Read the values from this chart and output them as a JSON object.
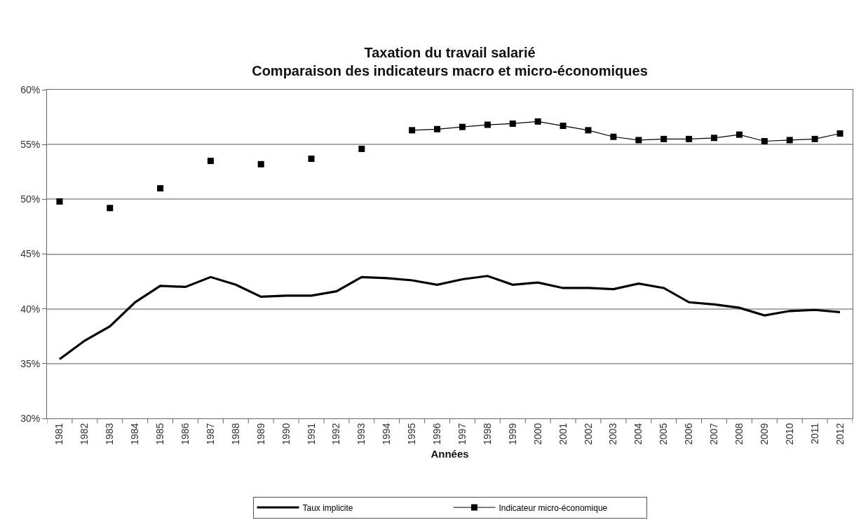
{
  "chart_data": {
    "type": "line",
    "title": "Taxation du travail salarié",
    "subtitle": "Comparaison des indicateurs macro et micro-économiques",
    "xlabel": "Années",
    "categories": [
      "1981",
      "1982",
      "1983",
      "1984",
      "1985",
      "1986",
      "1987",
      "1988",
      "1989",
      "1990",
      "1991",
      "1992",
      "1993",
      "1994",
      "1995",
      "1996",
      "1997",
      "1998",
      "1999",
      "2000",
      "2001",
      "2002",
      "2003",
      "2004",
      "2005",
      "2006",
      "2007",
      "2008",
      "2009",
      "2010",
      "2011",
      "2012"
    ],
    "series": [
      {
        "name": "Taux implicite",
        "color": "#000000",
        "marker": "none",
        "line_style": "solid",
        "values": [
          35.4,
          37.1,
          38.4,
          40.6,
          42.1,
          42.0,
          42.9,
          42.2,
          41.1,
          41.2,
          41.2,
          41.6,
          42.9,
          42.8,
          42.6,
          42.2,
          42.7,
          43.0,
          42.2,
          42.4,
          41.9,
          41.9,
          41.8,
          42.3,
          41.9,
          40.6,
          40.4,
          40.1,
          39.4,
          39.8,
          39.9,
          39.7
        ]
      },
      {
        "name": "Indicateur micro-économique",
        "color": "#000000",
        "marker": "square",
        "line_style": "solid",
        "values": [
          49.8,
          null,
          49.2,
          null,
          51.0,
          null,
          53.5,
          null,
          53.2,
          null,
          53.7,
          null,
          54.6,
          null,
          56.3,
          56.4,
          56.6,
          56.8,
          56.9,
          57.1,
          56.7,
          56.3,
          55.7,
          55.4,
          55.5,
          55.5,
          55.6,
          55.9,
          55.3,
          55.4,
          55.5,
          56.0
        ]
      }
    ],
    "ylim": [
      30,
      60
    ],
    "yticks": [
      {
        "value": 30,
        "label": "30%"
      },
      {
        "value": 35,
        "label": "35%"
      },
      {
        "value": 40,
        "label": "40%"
      },
      {
        "value": 45,
        "label": "45%"
      },
      {
        "value": 50,
        "label": "50%"
      },
      {
        "value": 55,
        "label": "55%"
      },
      {
        "value": 60,
        "label": "60%"
      }
    ],
    "grid": "y",
    "legend": "bottom"
  }
}
